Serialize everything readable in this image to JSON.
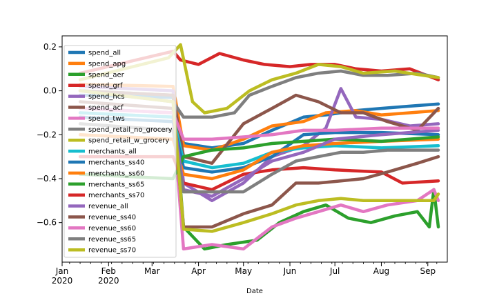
{
  "chart_data": {
    "type": "line",
    "title": "",
    "xlabel": "Date",
    "ylabel": "",
    "ylim": [
      -0.78,
      0.25
    ],
    "xlim": [
      "2020-01-01",
      "2020-09-14"
    ],
    "grid": false,
    "legend_placement": "top-left",
    "x_ticks": [
      {
        "date": "2020-01-01",
        "label": "Jan",
        "sublabel": "2020"
      },
      {
        "date": "2020-02-01",
        "label": "Feb",
        "sublabel": "2020"
      },
      {
        "date": "2020-03-01",
        "label": "Mar",
        "sublabel": ""
      },
      {
        "date": "2020-04-01",
        "label": "Apr",
        "sublabel": ""
      },
      {
        "date": "2020-05-01",
        "label": "May",
        "sublabel": ""
      },
      {
        "date": "2020-06-01",
        "label": "Jun",
        "sublabel": ""
      },
      {
        "date": "2020-07-01",
        "label": "Jul",
        "sublabel": ""
      },
      {
        "date": "2020-08-01",
        "label": "Aug",
        "sublabel": ""
      },
      {
        "date": "2020-09-01",
        "label": "Sep",
        "sublabel": ""
      }
    ],
    "y_ticks": [
      {
        "value": 0.2,
        "label": "0.2"
      },
      {
        "value": 0.0,
        "label": "0.0"
      },
      {
        "value": -0.2,
        "label": "−0.2"
      },
      {
        "value": -0.4,
        "label": "−0.4"
      },
      {
        "value": -0.6,
        "label": "−0.6"
      }
    ],
    "series": [
      {
        "name": "spend_all",
        "color": "#1f77b4",
        "points": [
          [
            "2020-01-13",
            -0.02
          ],
          [
            "2020-03-15",
            -0.03
          ],
          [
            "2020-03-22",
            -0.24
          ],
          [
            "2020-04-10",
            -0.26
          ],
          [
            "2020-05-01",
            -0.24
          ],
          [
            "2020-05-20",
            -0.18
          ],
          [
            "2020-06-10",
            -0.12
          ],
          [
            "2020-06-25",
            -0.11
          ],
          [
            "2020-07-15",
            -0.09
          ],
          [
            "2020-08-01",
            -0.08
          ],
          [
            "2020-08-20",
            -0.07
          ],
          [
            "2020-09-08",
            -0.06
          ]
        ]
      },
      {
        "name": "spend_apg",
        "color": "#ff7f0e",
        "points": [
          [
            "2020-01-13",
            0.03
          ],
          [
            "2020-03-15",
            0.02
          ],
          [
            "2020-03-22",
            -0.25
          ],
          [
            "2020-04-10",
            -0.27
          ],
          [
            "2020-05-01",
            -0.22
          ],
          [
            "2020-05-20",
            -0.16
          ],
          [
            "2020-06-10",
            -0.14
          ],
          [
            "2020-06-25",
            -0.1
          ],
          [
            "2020-07-15",
            -0.09
          ],
          [
            "2020-08-01",
            -0.11
          ],
          [
            "2020-08-20",
            -0.1
          ],
          [
            "2020-09-08",
            -0.09
          ]
        ]
      },
      {
        "name": "spend_aer",
        "color": "#2ca02c",
        "points": [
          [
            "2020-01-13",
            0.0
          ],
          [
            "2020-03-15",
            -0.02
          ],
          [
            "2020-03-22",
            -0.62
          ],
          [
            "2020-04-05",
            -0.72
          ],
          [
            "2020-04-20",
            -0.7
          ],
          [
            "2020-05-10",
            -0.68
          ],
          [
            "2020-05-25",
            -0.6
          ],
          [
            "2020-06-10",
            -0.55
          ],
          [
            "2020-06-25",
            -0.52
          ],
          [
            "2020-07-10",
            -0.58
          ],
          [
            "2020-07-25",
            -0.6
          ],
          [
            "2020-08-10",
            -0.57
          ],
          [
            "2020-08-25",
            -0.55
          ],
          [
            "2020-09-02",
            -0.62
          ],
          [
            "2020-09-05",
            -0.45
          ],
          [
            "2020-09-08",
            -0.62
          ]
        ]
      },
      {
        "name": "spend_grf",
        "color": "#d62728",
        "points": [
          [
            "2020-01-13",
            0.08
          ],
          [
            "2020-03-15",
            0.18
          ],
          [
            "2020-03-20",
            0.14
          ],
          [
            "2020-04-01",
            0.12
          ],
          [
            "2020-04-15",
            0.17
          ],
          [
            "2020-05-01",
            0.14
          ],
          [
            "2020-05-15",
            0.12
          ],
          [
            "2020-06-01",
            0.11
          ],
          [
            "2020-06-15",
            0.12
          ],
          [
            "2020-07-01",
            0.12
          ],
          [
            "2020-07-15",
            0.1
          ],
          [
            "2020-08-01",
            0.09
          ],
          [
            "2020-08-20",
            0.1
          ],
          [
            "2020-09-08",
            0.05
          ]
        ]
      },
      {
        "name": "spend_hcs",
        "color": "#9467bd",
        "points": [
          [
            "2020-01-13",
            0.02
          ],
          [
            "2020-03-15",
            0.0
          ],
          [
            "2020-03-22",
            -0.42
          ],
          [
            "2020-04-10",
            -0.5
          ],
          [
            "2020-05-01",
            -0.42
          ],
          [
            "2020-05-20",
            -0.3
          ],
          [
            "2020-06-10",
            -0.25
          ],
          [
            "2020-06-25",
            -0.17
          ],
          [
            "2020-07-05",
            0.01
          ],
          [
            "2020-07-15",
            -0.12
          ],
          [
            "2020-08-01",
            -0.13
          ],
          [
            "2020-08-20",
            -0.16
          ],
          [
            "2020-09-08",
            -0.15
          ]
        ]
      },
      {
        "name": "spend_acf",
        "color": "#8c564b",
        "points": [
          [
            "2020-01-13",
            0.0
          ],
          [
            "2020-03-15",
            -0.02
          ],
          [
            "2020-03-22",
            -0.3
          ],
          [
            "2020-04-10",
            -0.33
          ],
          [
            "2020-05-01",
            -0.15
          ],
          [
            "2020-05-20",
            -0.08
          ],
          [
            "2020-06-05",
            -0.02
          ],
          [
            "2020-06-20",
            -0.05
          ],
          [
            "2020-07-05",
            -0.1
          ],
          [
            "2020-07-20",
            -0.1
          ],
          [
            "2020-08-05",
            -0.14
          ],
          [
            "2020-08-25",
            -0.18
          ],
          [
            "2020-09-08",
            -0.08
          ]
        ]
      },
      {
        "name": "spend_tws",
        "color": "#e377c2",
        "points": [
          [
            "2020-01-13",
            -0.1
          ],
          [
            "2020-03-15",
            -0.12
          ],
          [
            "2020-03-22",
            -0.72
          ],
          [
            "2020-04-10",
            -0.7
          ],
          [
            "2020-05-01",
            -0.72
          ],
          [
            "2020-05-20",
            -0.62
          ],
          [
            "2020-06-05",
            -0.58
          ],
          [
            "2020-06-20",
            -0.55
          ],
          [
            "2020-07-05",
            -0.52
          ],
          [
            "2020-07-20",
            -0.55
          ],
          [
            "2020-08-05",
            -0.52
          ],
          [
            "2020-08-25",
            -0.5
          ],
          [
            "2020-09-05",
            -0.45
          ],
          [
            "2020-09-08",
            -0.5
          ]
        ]
      },
      {
        "name": "spend_retail_no_grocery",
        "color": "#7f7f7f",
        "points": [
          [
            "2020-01-13",
            0.0
          ],
          [
            "2020-03-15",
            -0.05
          ],
          [
            "2020-03-22",
            -0.12
          ],
          [
            "2020-04-10",
            -0.12
          ],
          [
            "2020-04-25",
            -0.1
          ],
          [
            "2020-05-05",
            -0.02
          ],
          [
            "2020-05-20",
            0.02
          ],
          [
            "2020-06-05",
            0.06
          ],
          [
            "2020-06-20",
            0.08
          ],
          [
            "2020-07-05",
            0.09
          ],
          [
            "2020-07-20",
            0.07
          ],
          [
            "2020-08-05",
            0.07
          ],
          [
            "2020-08-25",
            0.08
          ],
          [
            "2020-09-08",
            0.06
          ]
        ]
      },
      {
        "name": "spend_retail_w_grocery",
        "color": "#bcbd22",
        "points": [
          [
            "2020-01-13",
            0.05
          ],
          [
            "2020-03-12",
            0.15
          ],
          [
            "2020-03-20",
            0.21
          ],
          [
            "2020-03-28",
            -0.05
          ],
          [
            "2020-04-05",
            -0.1
          ],
          [
            "2020-04-20",
            -0.08
          ],
          [
            "2020-05-05",
            0.0
          ],
          [
            "2020-05-20",
            0.05
          ],
          [
            "2020-06-05",
            0.08
          ],
          [
            "2020-06-20",
            0.12
          ],
          [
            "2020-07-05",
            0.11
          ],
          [
            "2020-07-20",
            0.08
          ],
          [
            "2020-08-10",
            0.09
          ],
          [
            "2020-09-08",
            0.06
          ]
        ]
      },
      {
        "name": "merchants_all",
        "color": "#17becf",
        "points": [
          [
            "2020-01-13",
            -0.1
          ],
          [
            "2020-03-15",
            -0.12
          ],
          [
            "2020-03-22",
            -0.32
          ],
          [
            "2020-04-10",
            -0.35
          ],
          [
            "2020-05-01",
            -0.33
          ],
          [
            "2020-05-20",
            -0.28
          ],
          [
            "2020-06-10",
            -0.26
          ],
          [
            "2020-07-01",
            -0.25
          ],
          [
            "2020-08-01",
            -0.26
          ],
          [
            "2020-09-08",
            -0.25
          ]
        ]
      },
      {
        "name": "merchants_ss40",
        "color": "#1f77b4",
        "points": [
          [
            "2020-01-13",
            -0.12
          ],
          [
            "2020-03-15",
            -0.14
          ],
          [
            "2020-03-22",
            -0.35
          ],
          [
            "2020-04-10",
            -0.37
          ],
          [
            "2020-05-01",
            -0.35
          ],
          [
            "2020-05-20",
            -0.3
          ],
          [
            "2020-06-10",
            -0.2
          ],
          [
            "2020-07-01",
            -0.19
          ],
          [
            "2020-08-01",
            -0.19
          ],
          [
            "2020-09-08",
            -0.2
          ]
        ]
      },
      {
        "name": "merchants_ss60",
        "color": "#ff7f0e",
        "points": [
          [
            "2020-01-13",
            -0.2
          ],
          [
            "2020-03-15",
            -0.22
          ],
          [
            "2020-03-22",
            -0.38
          ],
          [
            "2020-04-10",
            -0.4
          ],
          [
            "2020-05-01",
            -0.36
          ],
          [
            "2020-05-20",
            -0.28
          ],
          [
            "2020-06-10",
            -0.25
          ],
          [
            "2020-07-01",
            -0.24
          ],
          [
            "2020-08-01",
            -0.23
          ],
          [
            "2020-09-08",
            -0.22
          ]
        ]
      },
      {
        "name": "merchants_ss65",
        "color": "#2ca02c",
        "points": [
          [
            "2020-01-13",
            -0.38
          ],
          [
            "2020-03-15",
            -0.4
          ],
          [
            "2020-03-22",
            -0.3
          ],
          [
            "2020-04-10",
            -0.27
          ],
          [
            "2020-05-01",
            -0.26
          ],
          [
            "2020-05-20",
            -0.24
          ],
          [
            "2020-06-10",
            -0.23
          ],
          [
            "2020-07-01",
            -0.22
          ],
          [
            "2020-08-01",
            -0.23
          ],
          [
            "2020-09-08",
            -0.21
          ]
        ]
      },
      {
        "name": "merchants_ss70",
        "color": "#d62728",
        "points": [
          [
            "2020-01-13",
            -0.3
          ],
          [
            "2020-03-15",
            -0.3
          ],
          [
            "2020-03-22",
            -0.42
          ],
          [
            "2020-04-10",
            -0.45
          ],
          [
            "2020-05-01",
            -0.38
          ],
          [
            "2020-05-20",
            -0.36
          ],
          [
            "2020-06-10",
            -0.35
          ],
          [
            "2020-07-01",
            -0.36
          ],
          [
            "2020-08-01",
            -0.37
          ],
          [
            "2020-08-15",
            -0.42
          ],
          [
            "2020-09-08",
            -0.41
          ]
        ]
      },
      {
        "name": "revenue_all",
        "color": "#9467bd",
        "points": [
          [
            "2020-01-13",
            -0.08
          ],
          [
            "2020-03-15",
            -0.1
          ],
          [
            "2020-03-22",
            -0.45
          ],
          [
            "2020-04-10",
            -0.48
          ],
          [
            "2020-05-01",
            -0.4
          ],
          [
            "2020-05-20",
            -0.32
          ],
          [
            "2020-06-10",
            -0.28
          ],
          [
            "2020-07-01",
            -0.22
          ],
          [
            "2020-08-01",
            -0.2
          ],
          [
            "2020-09-08",
            -0.18
          ]
        ]
      },
      {
        "name": "revenue_ss40",
        "color": "#8c564b",
        "points": [
          [
            "2020-01-13",
            -0.05
          ],
          [
            "2020-03-15",
            -0.08
          ],
          [
            "2020-03-22",
            -0.62
          ],
          [
            "2020-04-10",
            -0.62
          ],
          [
            "2020-05-01",
            -0.56
          ],
          [
            "2020-05-20",
            -0.52
          ],
          [
            "2020-06-05",
            -0.42
          ],
          [
            "2020-06-20",
            -0.42
          ],
          [
            "2020-07-05",
            -0.41
          ],
          [
            "2020-07-20",
            -0.4
          ],
          [
            "2020-08-05",
            -0.37
          ],
          [
            "2020-08-25",
            -0.33
          ],
          [
            "2020-09-08",
            -0.3
          ]
        ]
      },
      {
        "name": "revenue_ss60",
        "color": "#e377c2",
        "points": [
          [
            "2020-01-13",
            -0.08
          ],
          [
            "2020-03-15",
            -0.1
          ],
          [
            "2020-03-22",
            -0.22
          ],
          [
            "2020-04-10",
            -0.22
          ],
          [
            "2020-05-01",
            -0.21
          ],
          [
            "2020-05-20",
            -0.2
          ],
          [
            "2020-06-10",
            -0.18
          ],
          [
            "2020-07-01",
            -0.18
          ],
          [
            "2020-08-01",
            -0.17
          ],
          [
            "2020-09-08",
            -0.17
          ]
        ]
      },
      {
        "name": "revenue_ss65",
        "color": "#7f7f7f",
        "points": [
          [
            "2020-01-13",
            -0.15
          ],
          [
            "2020-03-15",
            -0.18
          ],
          [
            "2020-03-22",
            -0.46
          ],
          [
            "2020-04-10",
            -0.46
          ],
          [
            "2020-05-01",
            -0.46
          ],
          [
            "2020-05-20",
            -0.38
          ],
          [
            "2020-06-05",
            -0.32
          ],
          [
            "2020-06-20",
            -0.3
          ],
          [
            "2020-07-05",
            -0.28
          ],
          [
            "2020-07-20",
            -0.28
          ],
          [
            "2020-08-05",
            -0.27
          ],
          [
            "2020-08-25",
            -0.27
          ],
          [
            "2020-09-08",
            -0.27
          ]
        ]
      },
      {
        "name": "revenue_ss70",
        "color": "#bcbd22",
        "points": [
          [
            "2020-01-13",
            0.0
          ],
          [
            "2020-03-15",
            -0.05
          ],
          [
            "2020-03-22",
            -0.63
          ],
          [
            "2020-04-10",
            -0.64
          ],
          [
            "2020-05-01",
            -0.6
          ],
          [
            "2020-05-20",
            -0.56
          ],
          [
            "2020-06-05",
            -0.52
          ],
          [
            "2020-06-20",
            -0.5
          ],
          [
            "2020-07-05",
            -0.49
          ],
          [
            "2020-07-20",
            -0.5
          ],
          [
            "2020-08-05",
            -0.5
          ],
          [
            "2020-08-25",
            -0.5
          ],
          [
            "2020-09-05",
            -0.5
          ],
          [
            "2020-09-08",
            -0.47
          ]
        ]
      }
    ]
  }
}
